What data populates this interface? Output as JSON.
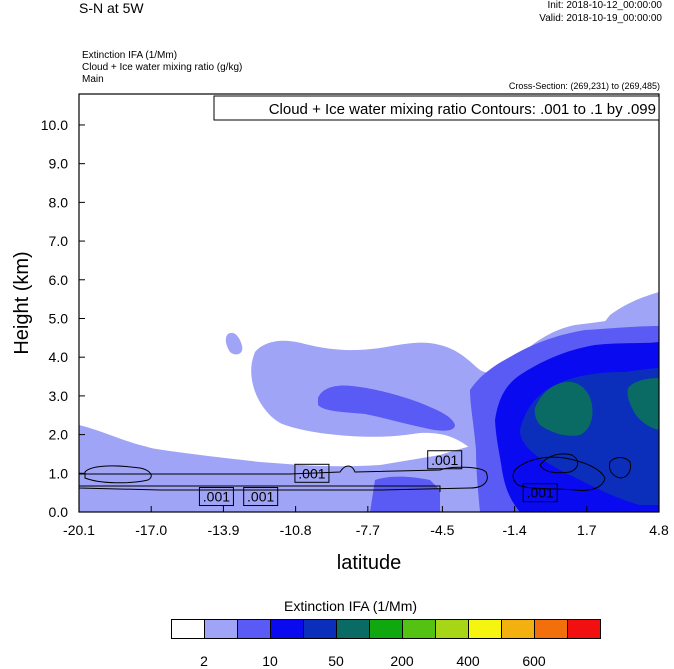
{
  "header": {
    "title": "S-N at 5W",
    "init": "Init: 2018-10-12_00:00:00",
    "valid": "Valid: 2018-10-19_00:00:00",
    "fields": [
      "Extinction IFA   (1/Mm)",
      "Cloud + Ice water mixing ratio   (g/kg)",
      "Main"
    ],
    "cross_section": "Cross-Section: (269,231) to (269,485)"
  },
  "chart_data": {
    "type": "heatmap",
    "title": "S-N at 5W",
    "xlabel": "latitude",
    "ylabel": "Height (km)",
    "xlim": [
      -20.1,
      4.8
    ],
    "ylim": [
      0.0,
      10.8
    ],
    "x_ticks": [
      "-20.1",
      "-17.0",
      "-13.9",
      "-10.8",
      "-7.7",
      "-4.5",
      "-1.4",
      "1.7",
      "4.8"
    ],
    "y_ticks": [
      "0.0",
      "1.0",
      "2.0",
      "3.0",
      "4.0",
      "5.0",
      "6.0",
      "7.0",
      "8.0",
      "9.0",
      "10.0"
    ],
    "contour_info": "Cloud + Ice water mixing ratio Contours: .001 to .1 by .099",
    "contour_labels": [
      {
        "text": ".001",
        "lat": -14.2,
        "height": 0.4
      },
      {
        "text": ".001",
        "lat": -12.3,
        "height": 0.4
      },
      {
        "text": ".001",
        "lat": -10.1,
        "height": 1.0
      },
      {
        "text": ".001",
        "lat": -4.4,
        "height": 1.35
      },
      {
        "text": ".001",
        "lat": -0.3,
        "height": 0.5
      }
    ],
    "colorbar": {
      "title": "Extinction IFA  (1/Mm)",
      "colors": [
        "#ffffff",
        "#a0a4f6",
        "#5a5af4",
        "#0a0af0",
        "#0b2fbb",
        "#0a6b64",
        "#10a80f",
        "#54c212",
        "#a6d616",
        "#f5f510",
        "#f3b10f",
        "#f26f0c",
        "#f20f0f"
      ],
      "labels": [
        "2",
        "10",
        "50",
        "200",
        "400",
        "600"
      ]
    }
  }
}
